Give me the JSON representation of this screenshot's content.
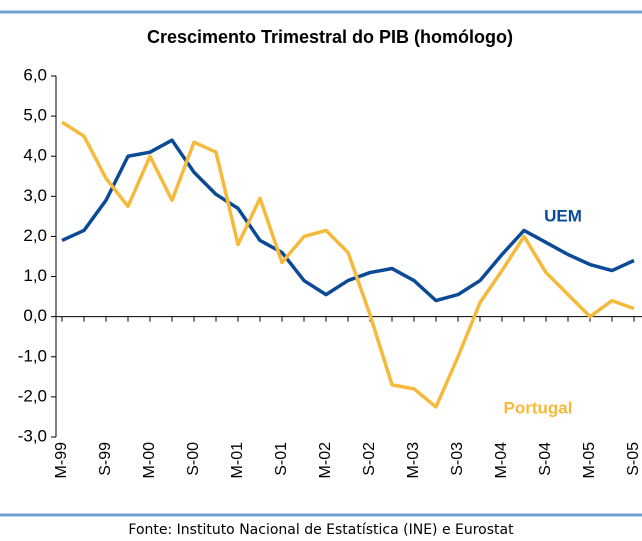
{
  "chart_data": {
    "type": "line",
    "title": "Crescimento Trimestral do PIB (homólogo)",
    "source": "Fonte: Instituto Nacional de Estatística (INE) e Eurostat",
    "categories": [
      "M-99",
      null,
      "S-99",
      null,
      "M-00",
      null,
      "S-00",
      null,
      "M-01",
      null,
      "S-01",
      null,
      "M-02",
      null,
      "S-02",
      null,
      "M-03",
      null,
      "S-03",
      null,
      "M-04",
      null,
      "S-04",
      null,
      "M-05",
      null,
      "S-05"
    ],
    "series": [
      {
        "name": "UEM",
        "color": "#0b4a96",
        "values": [
          1.9,
          2.15,
          2.9,
          4.0,
          4.1,
          4.4,
          3.6,
          3.05,
          2.7,
          1.9,
          1.6,
          0.9,
          0.55,
          0.9,
          1.1,
          1.2,
          0.9,
          0.4,
          0.55,
          0.9,
          1.55,
          2.15,
          1.85,
          1.55,
          1.3,
          1.15,
          1.4
        ]
      },
      {
        "name": "Portugal",
        "color": "#f6b93b",
        "values": [
          4.85,
          4.5,
          3.45,
          2.75,
          4.0,
          2.9,
          4.35,
          4.1,
          1.8,
          2.95,
          1.35,
          2.0,
          2.15,
          1.6,
          0.05,
          -1.7,
          -1.8,
          -2.25,
          -1.0,
          0.35,
          1.15,
          2.0,
          1.1,
          0.55,
          0.0,
          0.4,
          0.2
        ]
      }
    ],
    "ylim": [
      -3,
      6
    ],
    "yticks": [
      {
        "value": -3,
        "label": "-3,0"
      },
      {
        "value": -2,
        "label": "-2,0"
      },
      {
        "value": -1,
        "label": "-1,0"
      },
      {
        "value": 0,
        "label": "0,0"
      },
      {
        "value": 1,
        "label": "1,0"
      },
      {
        "value": 2,
        "label": "2,0"
      },
      {
        "value": 3,
        "label": "3,0"
      },
      {
        "value": 4,
        "label": "4,0"
      },
      {
        "value": 5,
        "label": "5,0"
      },
      {
        "value": 6,
        "label": "6,0"
      }
    ],
    "grid": false
  }
}
